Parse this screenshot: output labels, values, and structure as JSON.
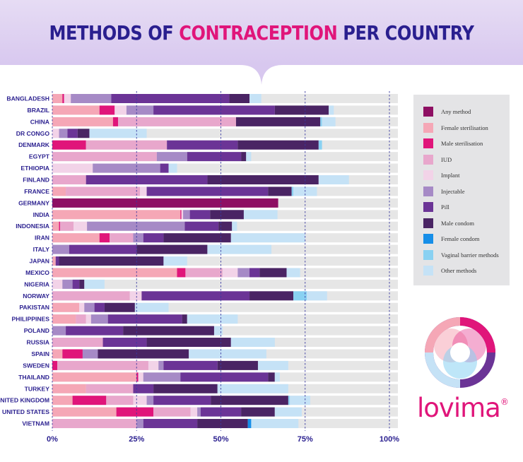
{
  "page": {
    "title_part1": "METHODS OF ",
    "title_accent": "CONTRACEPTION",
    "title_part2": " PER COUNTRY",
    "brand": "lovima",
    "brand_mark": "®"
  },
  "colors": {
    "title": "#2a1f8f",
    "accent": "#e0157a",
    "banner": "#dccdf1",
    "track": "#e6e6e6",
    "legend_bg": "#e4e4e6"
  },
  "chart_data": {
    "type": "bar",
    "orientation": "horizontal",
    "stacked": true,
    "title": "METHODS OF CONTRACEPTION PER COUNTRY",
    "xlim": [
      0,
      100
    ],
    "x_ticks": [
      "0%",
      "25%",
      "50%",
      "75%",
      "100%"
    ],
    "grid": true,
    "legend_position": "right",
    "categories": [
      "BANGLADESH",
      "BRAZIL",
      "CHINA",
      "DR CONGO",
      "DENMARK",
      "EGYPT",
      "ETHIOPIA",
      "FINLAND",
      "FRANCE",
      "GERMANY",
      "INDIA",
      "INDONESIA",
      "IRAN",
      "ITALY",
      "JAPAN",
      "MEXICO",
      "NIGERIA",
      "NORWAY",
      "PAKISTAN",
      "PHILIPPINES",
      "POLAND",
      "RUSSIA",
      "SPAIN",
      "SWEDEN",
      "THAILAND",
      "TURKEY",
      "UNITED KINGDOM",
      "UNITED STATES",
      "VIETNAM"
    ],
    "series": [
      {
        "name": "Any method",
        "color": "#8e0f63",
        "values": [
          0,
          0,
          0,
          0,
          0,
          0,
          0,
          0,
          0,
          67,
          0,
          0,
          0,
          0,
          0,
          0,
          0,
          0,
          0,
          0,
          0,
          0,
          0,
          0,
          0,
          0,
          0,
          0,
          0
        ]
      },
      {
        "name": "Female sterilisation",
        "color": "#f5a7b6",
        "values": [
          3,
          14,
          18,
          0,
          0,
          0,
          0,
          0,
          4,
          0,
          38,
          2,
          14,
          0,
          1,
          37,
          0,
          0,
          8,
          7,
          0,
          0,
          3,
          0,
          25,
          10,
          6,
          19,
          0
        ]
      },
      {
        "name": "Male sterilisation",
        "color": "#e0157a",
        "values": [
          0.5,
          4.5,
          1.5,
          0,
          10,
          0,
          0,
          0,
          0,
          0,
          0.3,
          0.3,
          3,
          0,
          0,
          2.5,
          0,
          0,
          0,
          0,
          0,
          0,
          6,
          1.5,
          0.5,
          0,
          10,
          11,
          0
        ]
      },
      {
        "name": "IUD",
        "color": "#e8a7cc",
        "values": [
          0,
          0,
          35,
          0,
          24,
          31,
          0,
          10,
          22,
          0,
          0,
          4,
          7,
          0,
          0,
          11,
          0,
          23,
          0,
          3,
          0,
          15,
          0,
          27,
          0,
          14,
          8,
          11,
          25
        ]
      },
      {
        "name": "Implant",
        "color": "#f2d3e8",
        "values": [
          2,
          3.5,
          0,
          2,
          0,
          0,
          12,
          0,
          2,
          0,
          0.5,
          4,
          0,
          0,
          0,
          4.5,
          3,
          3.5,
          1.5,
          1.5,
          0,
          0,
          0,
          3,
          1.5,
          0,
          4,
          2,
          0
        ]
      },
      {
        "name": "Injectable",
        "color": "#a68ac6",
        "values": [
          12,
          8,
          0,
          2.5,
          0,
          9,
          20,
          0,
          0,
          0,
          2,
          29,
          3,
          5,
          0,
          3.5,
          3,
          0,
          3,
          5,
          4,
          0,
          4.5,
          1.5,
          11,
          0,
          2,
          1,
          2
        ]
      },
      {
        "name": "Pill",
        "color": "#6b3496",
        "values": [
          35,
          36,
          0,
          3,
          21,
          16,
          2.5,
          36,
          36,
          0,
          6,
          10,
          6,
          20,
          1,
          3,
          2,
          32,
          3,
          22,
          17,
          13,
          0,
          16,
          26,
          6,
          17,
          12,
          16
        ]
      },
      {
        "name": "Male condom",
        "color": "#4a2464",
        "values": [
          6,
          16,
          25,
          3.5,
          24,
          1.5,
          0,
          33,
          7,
          0,
          10,
          4,
          20,
          21,
          31,
          8,
          1.5,
          13,
          9,
          1.5,
          27,
          25,
          27,
          12,
          2,
          19,
          23,
          10,
          15
        ]
      },
      {
        "name": "Female condom",
        "color": "#168ee8",
        "values": [
          0,
          0,
          0,
          0,
          0,
          0,
          0,
          0,
          0,
          0,
          0,
          0,
          0,
          0,
          0,
          0,
          0,
          0,
          0,
          0,
          0,
          0,
          0,
          0,
          0,
          0,
          0,
          0,
          1
        ]
      },
      {
        "name": "Vaginal barrier methods",
        "color": "#89d1f2",
        "values": [
          0,
          0,
          0.5,
          0,
          1,
          0,
          0,
          0,
          0.5,
          0,
          0,
          0,
          0,
          0,
          0,
          0,
          0,
          4,
          0,
          0,
          0,
          0,
          0,
          0,
          0,
          0,
          0.5,
          0,
          0
        ]
      },
      {
        "name": "Other methods",
        "color": "#c5e2f6",
        "values": [
          3.5,
          1.5,
          4,
          17,
          0,
          1.5,
          2.5,
          9,
          7,
          0,
          10,
          1.5,
          22,
          19,
          7,
          4,
          6,
          6,
          10,
          15,
          2.5,
          13,
          23,
          9,
          1.5,
          21,
          6,
          8,
          14
        ]
      }
    ]
  }
}
